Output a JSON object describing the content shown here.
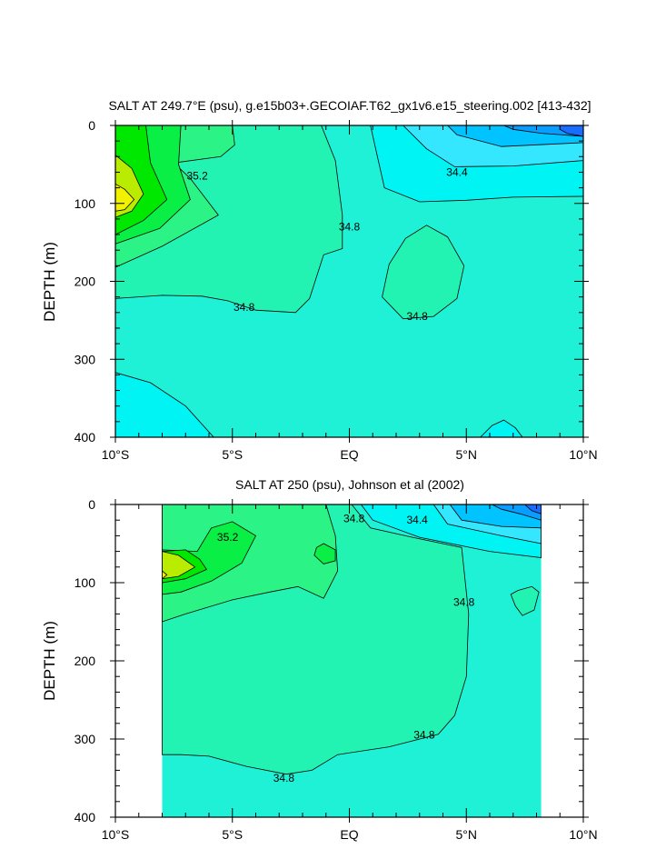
{
  "chart_data": [
    {
      "type": "contour",
      "title": "SALT AT 249.7°E (psu), g.e15b03+.GECOIAF.T62_gx1v6.e15_steering.002 [413-432]",
      "xlabel": "",
      "ylabel": "DEPTH (m)",
      "xlim": [
        -10,
        10
      ],
      "ylim": [
        400,
        0
      ],
      "x_ticks": [
        {
          "value": -10,
          "label": "10°S"
        },
        {
          "value": -5,
          "label": "5°S"
        },
        {
          "value": 0,
          "label": "EQ"
        },
        {
          "value": 5,
          "label": "5°N"
        },
        {
          "value": 10,
          "label": "10°N"
        }
      ],
      "y_ticks": [
        {
          "value": 0,
          "label": "0"
        },
        {
          "value": 100,
          "label": "100"
        },
        {
          "value": 200,
          "label": "200"
        },
        {
          "value": 300,
          "label": "300"
        },
        {
          "value": 400,
          "label": "400"
        }
      ],
      "contour_interval": 0.2,
      "contour_labels": [
        {
          "text": "35.2",
          "x": -6.5,
          "depth": 65
        },
        {
          "text": "34.4",
          "x": 4.6,
          "depth": 60
        },
        {
          "text": "34.8",
          "x": 0.0,
          "depth": 130
        },
        {
          "text": "34.8",
          "x": 2.9,
          "depth": 245
        },
        {
          "text": "34.8",
          "x": -4.5,
          "depth": 233
        }
      ],
      "regions": [
        {
          "name": "base",
          "level": 34.8,
          "color": "#1ef1d6",
          "poly": [
            [
              -10,
              0
            ],
            [
              10,
              0
            ],
            [
              10,
              400
            ],
            [
              -10,
              400
            ]
          ]
        },
        {
          "name": "fresh-bottom-left",
          "level": 34.6,
          "color": "#00f4f4",
          "poly": [
            [
              -10,
              317
            ],
            [
              -8.5,
              330
            ],
            [
              -7,
              360
            ],
            [
              -5.8,
              400
            ],
            [
              -10,
              400
            ]
          ]
        },
        {
          "name": "fresh-bottom-right",
          "level": 34.6,
          "color": "#00f4f4",
          "poly": [
            [
              5.6,
              400
            ],
            [
              6.1,
              385
            ],
            [
              6.6,
              378
            ],
            [
              7.1,
              388
            ],
            [
              7.4,
              400
            ]
          ]
        },
        {
          "name": "fresh-upper-right",
          "level": 34.6,
          "color": "#00f4f4",
          "poly": [
            [
              0.9,
              0
            ],
            [
              10,
              0
            ],
            [
              10,
              91
            ],
            [
              7,
              92
            ],
            [
              5,
              96
            ],
            [
              3,
              98
            ],
            [
              1.5,
              80
            ],
            [
              0.9,
              0
            ]
          ]
        },
        {
          "name": "salt-349-blob",
          "level": 34.9,
          "color": "#22f3b2",
          "poly": [
            [
              1.4,
              220
            ],
            [
              1.7,
              178
            ],
            [
              2.4,
              145
            ],
            [
              3.3,
              128
            ],
            [
              4.2,
              143
            ],
            [
              4.9,
              180
            ],
            [
              4.6,
              222
            ],
            [
              3.6,
              245
            ],
            [
              2.3,
              248
            ],
            [
              1.4,
              220
            ]
          ]
        },
        {
          "name": "salt-349-left",
          "level": 34.9,
          "color": "#22f3b2",
          "poly": [
            [
              -10,
              0
            ],
            [
              -1.2,
              0
            ],
            [
              -0.6,
              45
            ],
            [
              -0.3,
              115
            ],
            [
              -0.3,
              158
            ],
            [
              -1.1,
              166
            ],
            [
              -1.7,
              222
            ],
            [
              -2.3,
              240
            ],
            [
              -4,
              237
            ],
            [
              -5.2,
              225
            ],
            [
              -6.3,
              219
            ],
            [
              -8,
              218
            ],
            [
              -10,
              222
            ]
          ]
        },
        {
          "name": "lowsal-343",
          "level": 34.3,
          "color": "#35e6ff",
          "poly": [
            [
              2.3,
              0
            ],
            [
              10,
              0
            ],
            [
              10,
              45
            ],
            [
              7,
              52
            ],
            [
              4.5,
              53
            ],
            [
              3.3,
              30
            ],
            [
              2.3,
              0
            ]
          ]
        },
        {
          "name": "lowsal-340",
          "level": 34.0,
          "color": "#00c3ff",
          "poly": [
            [
              4.2,
              0
            ],
            [
              10,
              0
            ],
            [
              10,
              22
            ],
            [
              6.5,
              27
            ],
            [
              4.6,
              12
            ]
          ]
        },
        {
          "name": "lowsal-338",
          "level": 33.8,
          "color": "#089dff",
          "poly": [
            [
              6.6,
              0
            ],
            [
              10,
              0
            ],
            [
              10,
              14
            ],
            [
              8.2,
              10
            ],
            [
              7,
              5
            ]
          ]
        },
        {
          "name": "lowsal-336",
          "level": 33.6,
          "color": "#1a6cff",
          "poly": [
            [
              9,
              0
            ],
            [
              10,
              0
            ],
            [
              10,
              14
            ],
            [
              9.3,
              10
            ],
            [
              9,
              5
            ]
          ]
        },
        {
          "name": "salt-351",
          "level": 35.1,
          "color": "#2cf386",
          "poly": [
            [
              -10,
              0
            ],
            [
              -5,
              0
            ],
            [
              -4.9,
              25
            ],
            [
              -5.5,
              40
            ],
            [
              -7.5,
              48
            ],
            [
              -6.8,
              68
            ],
            [
              -5.6,
              115
            ],
            [
              -8,
              155
            ],
            [
              -10,
              182
            ]
          ]
        },
        {
          "name": "salt-353",
          "level": 35.3,
          "color": "#09ef45",
          "poly": [
            [
              -10,
              0
            ],
            [
              -7.2,
              0
            ],
            [
              -7.3,
              50
            ],
            [
              -6.8,
              95
            ],
            [
              -8.1,
              132
            ],
            [
              -10,
              152
            ]
          ]
        },
        {
          "name": "salt-355",
          "level": 35.5,
          "color": "#00e800",
          "poly": [
            [
              -10,
              0
            ],
            [
              -8.7,
              0
            ],
            [
              -8.5,
              48
            ],
            [
              -7.8,
              95
            ],
            [
              -8.8,
              122
            ],
            [
              -10,
              140
            ]
          ]
        },
        {
          "name": "salt-357",
          "level": 35.7,
          "color": "#b9ec00",
          "poly": [
            [
              -10,
              38
            ],
            [
              -9.3,
              55
            ],
            [
              -8.8,
              88
            ],
            [
              -9.3,
              110
            ],
            [
              -10,
              118
            ]
          ]
        },
        {
          "name": "salt-359",
          "level": 35.9,
          "color": "#f1f100",
          "poly": [
            [
              -10,
              75
            ],
            [
              -9.6,
              82
            ],
            [
              -9.2,
              95
            ],
            [
              -9.6,
              108
            ],
            [
              -10,
              110
            ]
          ]
        }
      ]
    },
    {
      "type": "contour",
      "title": "SALT AT 250 (psu), Johnson et al (2002)",
      "xlabel": "",
      "ylabel": "DEPTH (m)",
      "xlim": [
        -10,
        10
      ],
      "ylim": [
        400,
        0
      ],
      "data_xrange": [
        -8,
        8.2
      ],
      "x_ticks": [
        {
          "value": -10,
          "label": "10°S"
        },
        {
          "value": -5,
          "label": "5°S"
        },
        {
          "value": 0,
          "label": "EQ"
        },
        {
          "value": 5,
          "label": "5°N"
        },
        {
          "value": 10,
          "label": "10°N"
        }
      ],
      "y_ticks": [
        {
          "value": 0,
          "label": "0"
        },
        {
          "value": 100,
          "label": "100"
        },
        {
          "value": 200,
          "label": "200"
        },
        {
          "value": 300,
          "label": "300"
        },
        {
          "value": 400,
          "label": "400"
        }
      ],
      "contour_interval": 0.2,
      "contour_labels": [
        {
          "text": "35.2",
          "x": -5.2,
          "depth": 42
        },
        {
          "text": "34.8",
          "x": 0.2,
          "depth": 18
        },
        {
          "text": "34.4",
          "x": 2.9,
          "depth": 20
        },
        {
          "text": "34.8",
          "x": 4.9,
          "depth": 125
        },
        {
          "text": "34.8",
          "x": 3.2,
          "depth": 295
        },
        {
          "text": "34.8",
          "x": -2.8,
          "depth": 350
        }
      ],
      "regions": [
        {
          "name": "base",
          "level": 34.8,
          "color": "#1ef1d6",
          "poly": [
            [
              -8,
              0
            ],
            [
              8.2,
              0
            ],
            [
              8.2,
              400
            ],
            [
              -8,
              400
            ]
          ]
        },
        {
          "name": "salt-349",
          "level": 34.9,
          "color": "#22f3b2",
          "poly": [
            [
              -8,
              0
            ],
            [
              0.1,
              0
            ],
            [
              0.9,
              30
            ],
            [
              2.7,
              42
            ],
            [
              4.8,
              55
            ],
            [
              5.1,
              140
            ],
            [
              5,
              220
            ],
            [
              4.5,
              270
            ],
            [
              3.8,
              294
            ],
            [
              1.7,
              310
            ],
            [
              -0.5,
              320
            ],
            [
              -1.6,
              340
            ],
            [
              -2.7,
              345
            ],
            [
              -4.4,
              335
            ],
            [
              -6,
              322
            ],
            [
              -7.2,
              320
            ],
            [
              -8,
              320
            ]
          ]
        },
        {
          "name": "salt-349-right-blob",
          "level": 34.9,
          "color": "#22f3b2",
          "poly": [
            [
              6.9,
              115
            ],
            [
              7.2,
              110
            ],
            [
              7.8,
              105
            ],
            [
              8.1,
              112
            ],
            [
              7.9,
              135
            ],
            [
              7.4,
              142
            ],
            [
              7.1,
              130
            ]
          ]
        },
        {
          "name": "lowsal-344",
          "level": 34.5,
          "color": "#00f4f4",
          "poly": [
            [
              0.5,
              0
            ],
            [
              8.2,
              0
            ],
            [
              8.2,
              68
            ],
            [
              6,
              60
            ],
            [
              3,
              42
            ],
            [
              1,
              20
            ]
          ]
        },
        {
          "name": "lowsal-342",
          "level": 34.3,
          "color": "#35e6ff",
          "poly": [
            [
              3.6,
              0
            ],
            [
              8.2,
              0
            ],
            [
              8.2,
              50
            ],
            [
              6.5,
              40
            ],
            [
              4.2,
              25
            ]
          ]
        },
        {
          "name": "lowsal-340",
          "level": 34.0,
          "color": "#00c3ff",
          "poly": [
            [
              4.3,
              0
            ],
            [
              8.2,
              0
            ],
            [
              8.2,
              30
            ],
            [
              6.5,
              28
            ],
            [
              4.8,
              20
            ]
          ]
        },
        {
          "name": "lowsal-338",
          "level": 33.8,
          "color": "#089dff",
          "poly": [
            [
              6.1,
              0
            ],
            [
              8.2,
              0
            ],
            [
              8.2,
              20
            ],
            [
              7.3,
              12
            ],
            [
              6.5,
              6
            ]
          ]
        },
        {
          "name": "lowsal-336",
          "level": 33.6,
          "color": "#1a6cff",
          "poly": [
            [
              7.5,
              0
            ],
            [
              8.2,
              0
            ],
            [
              8.2,
              12
            ],
            [
              7.8,
              8
            ]
          ]
        },
        {
          "name": "salt-351",
          "level": 35.1,
          "color": "#2cf386",
          "poly": [
            [
              -8,
              0
            ],
            [
              -1,
              0
            ],
            [
              -0.6,
              40
            ],
            [
              -0.5,
              85
            ],
            [
              -1.1,
              120
            ],
            [
              -2.2,
              105
            ],
            [
              -3.4,
              112
            ],
            [
              -5,
              122
            ],
            [
              -7,
              140
            ],
            [
              -8,
              150
            ]
          ]
        },
        {
          "name": "salt-351-blob",
          "level": 35.3,
          "color": "#09ef45",
          "poly": [
            [
              -1.4,
              55
            ],
            [
              -1.1,
              50
            ],
            [
              -0.6,
              58
            ],
            [
              -0.6,
              72
            ],
            [
              -1.1,
              76
            ],
            [
              -1.5,
              65
            ]
          ]
        },
        {
          "name": "salt-353",
          "level": 35.3,
          "color": "#09ef45",
          "poly": [
            [
              -8,
              58
            ],
            [
              -6.5,
              60
            ],
            [
              -5.9,
              30
            ],
            [
              -5,
              22
            ],
            [
              -4,
              40
            ],
            [
              -4.6,
              75
            ],
            [
              -5.9,
              98
            ],
            [
              -7.2,
              112
            ],
            [
              -8,
              115
            ]
          ]
        },
        {
          "name": "salt-355",
          "level": 35.5,
          "color": "#00e800",
          "poly": [
            [
              -8,
              60
            ],
            [
              -7,
              58
            ],
            [
              -6.4,
              70
            ],
            [
              -6.1,
              83
            ],
            [
              -7,
              95
            ],
            [
              -8,
              100
            ]
          ]
        },
        {
          "name": "salt-357",
          "level": 35.7,
          "color": "#b9ec00",
          "poly": [
            [
              -8,
              60
            ],
            [
              -7.3,
              65
            ],
            [
              -6.6,
              80
            ],
            [
              -7.3,
              92
            ],
            [
              -8,
              95
            ]
          ]
        },
        {
          "name": "salt-359",
          "level": 35.9,
          "color": "#f1f100",
          "poly": [
            [
              -8,
              85
            ],
            [
              -7.8,
              90
            ],
            [
              -8,
              95
            ]
          ]
        }
      ]
    }
  ]
}
